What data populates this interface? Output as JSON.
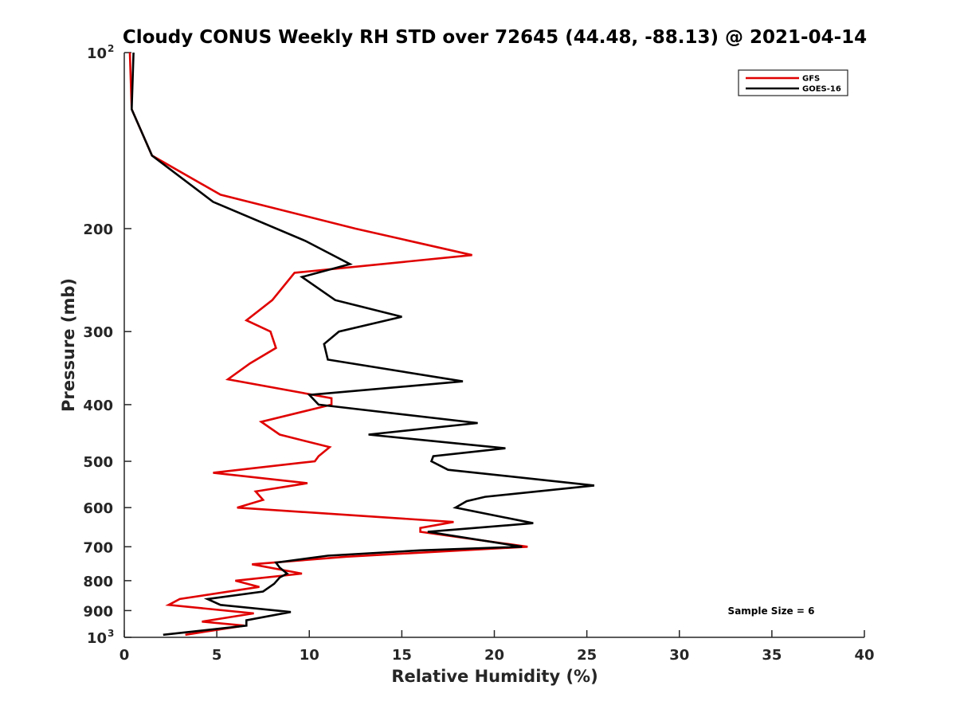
{
  "chart_data": {
    "type": "line",
    "title": "Cloudy CONUS Weekly RH STD over 72645 (44.48, -88.13) @ 2021-04-14",
    "xlabel": "Relative Humidity (%)",
    "ylabel": "Pressure (mb)",
    "xlim": [
      0,
      40
    ],
    "ylim": [
      100,
      1000
    ],
    "y_scale": "log",
    "y_reversed": true,
    "x_ticks": [
      "0",
      "5",
      "10",
      "15",
      "20",
      "25",
      "30",
      "35",
      "40"
    ],
    "y_ticks": [
      {
        "value": 100,
        "label": "10",
        "exp": "2"
      },
      {
        "value": 200,
        "label": "200"
      },
      {
        "value": 300,
        "label": "300"
      },
      {
        "value": 400,
        "label": "400"
      },
      {
        "value": 500,
        "label": "500"
      },
      {
        "value": 600,
        "label": "600"
      },
      {
        "value": 700,
        "label": "700"
      },
      {
        "value": 800,
        "label": "800"
      },
      {
        "value": 900,
        "label": "900"
      },
      {
        "value": 1000,
        "label": "10",
        "exp": "3"
      }
    ],
    "grid": false,
    "legend_position": "top-right",
    "annotation": "Sample Size = 6",
    "series": [
      {
        "name": "GFS",
        "color": "#e00000",
        "points": [
          [
            0.3,
            100
          ],
          [
            0.4,
            125
          ],
          [
            1.5,
            150
          ],
          [
            5.2,
            175
          ],
          [
            12.5,
            200
          ],
          [
            18.8,
            222
          ],
          [
            9.2,
            238
          ],
          [
            8.0,
            265
          ],
          [
            6.6,
            287
          ],
          [
            7.9,
            300
          ],
          [
            8.2,
            320
          ],
          [
            6.8,
            340
          ],
          [
            5.6,
            362
          ],
          [
            11.2,
            390
          ],
          [
            11.2,
            400
          ],
          [
            10.5,
            405
          ],
          [
            7.4,
            428
          ],
          [
            8.4,
            450
          ],
          [
            11.1,
            473
          ],
          [
            10.5,
            490
          ],
          [
            10.3,
            500
          ],
          [
            4.8,
            523
          ],
          [
            9.9,
            545
          ],
          [
            7.1,
            563
          ],
          [
            7.5,
            582
          ],
          [
            6.1,
            600
          ],
          [
            17.8,
            635
          ],
          [
            16.0,
            650
          ],
          [
            16.0,
            660
          ],
          [
            21.8,
            700
          ],
          [
            12.0,
            728
          ],
          [
            6.9,
            750
          ],
          [
            9.6,
            778
          ],
          [
            6.0,
            800
          ],
          [
            7.3,
            820
          ],
          [
            3.0,
            860
          ],
          [
            2.4,
            880
          ],
          [
            7.0,
            910
          ],
          [
            4.2,
            940
          ],
          [
            6.5,
            955
          ],
          [
            3.3,
            990
          ]
        ]
      },
      {
        "name": "GOES-16",
        "color": "#000000",
        "points": [
          [
            0.5,
            100
          ],
          [
            0.4,
            125
          ],
          [
            1.5,
            150
          ],
          [
            4.8,
            180
          ],
          [
            9.8,
            210
          ],
          [
            12.2,
            230
          ],
          [
            9.6,
            242
          ],
          [
            11.4,
            265
          ],
          [
            15.0,
            283
          ],
          [
            11.6,
            300
          ],
          [
            10.8,
            315
          ],
          [
            11.0,
            335
          ],
          [
            18.3,
            365
          ],
          [
            10.0,
            385
          ],
          [
            10.5,
            400
          ],
          [
            11.1,
            402
          ],
          [
            19.1,
            430
          ],
          [
            13.2,
            450
          ],
          [
            20.6,
            475
          ],
          [
            16.7,
            490
          ],
          [
            16.6,
            500
          ],
          [
            17.5,
            517
          ],
          [
            25.4,
            550
          ],
          [
            19.5,
            575
          ],
          [
            18.5,
            585
          ],
          [
            17.9,
            600
          ],
          [
            22.1,
            638
          ],
          [
            17.7,
            655
          ],
          [
            16.4,
            660
          ],
          [
            21.5,
            700
          ],
          [
            16.0,
            710
          ],
          [
            11.0,
            725
          ],
          [
            8.2,
            745
          ],
          [
            8.4,
            760
          ],
          [
            8.8,
            778
          ],
          [
            8.4,
            790
          ],
          [
            8.1,
            810
          ],
          [
            7.5,
            835
          ],
          [
            4.5,
            860
          ],
          [
            5.2,
            880
          ],
          [
            9.0,
            905
          ],
          [
            6.6,
            935
          ],
          [
            6.6,
            955
          ],
          [
            2.1,
            990
          ]
        ]
      }
    ]
  }
}
